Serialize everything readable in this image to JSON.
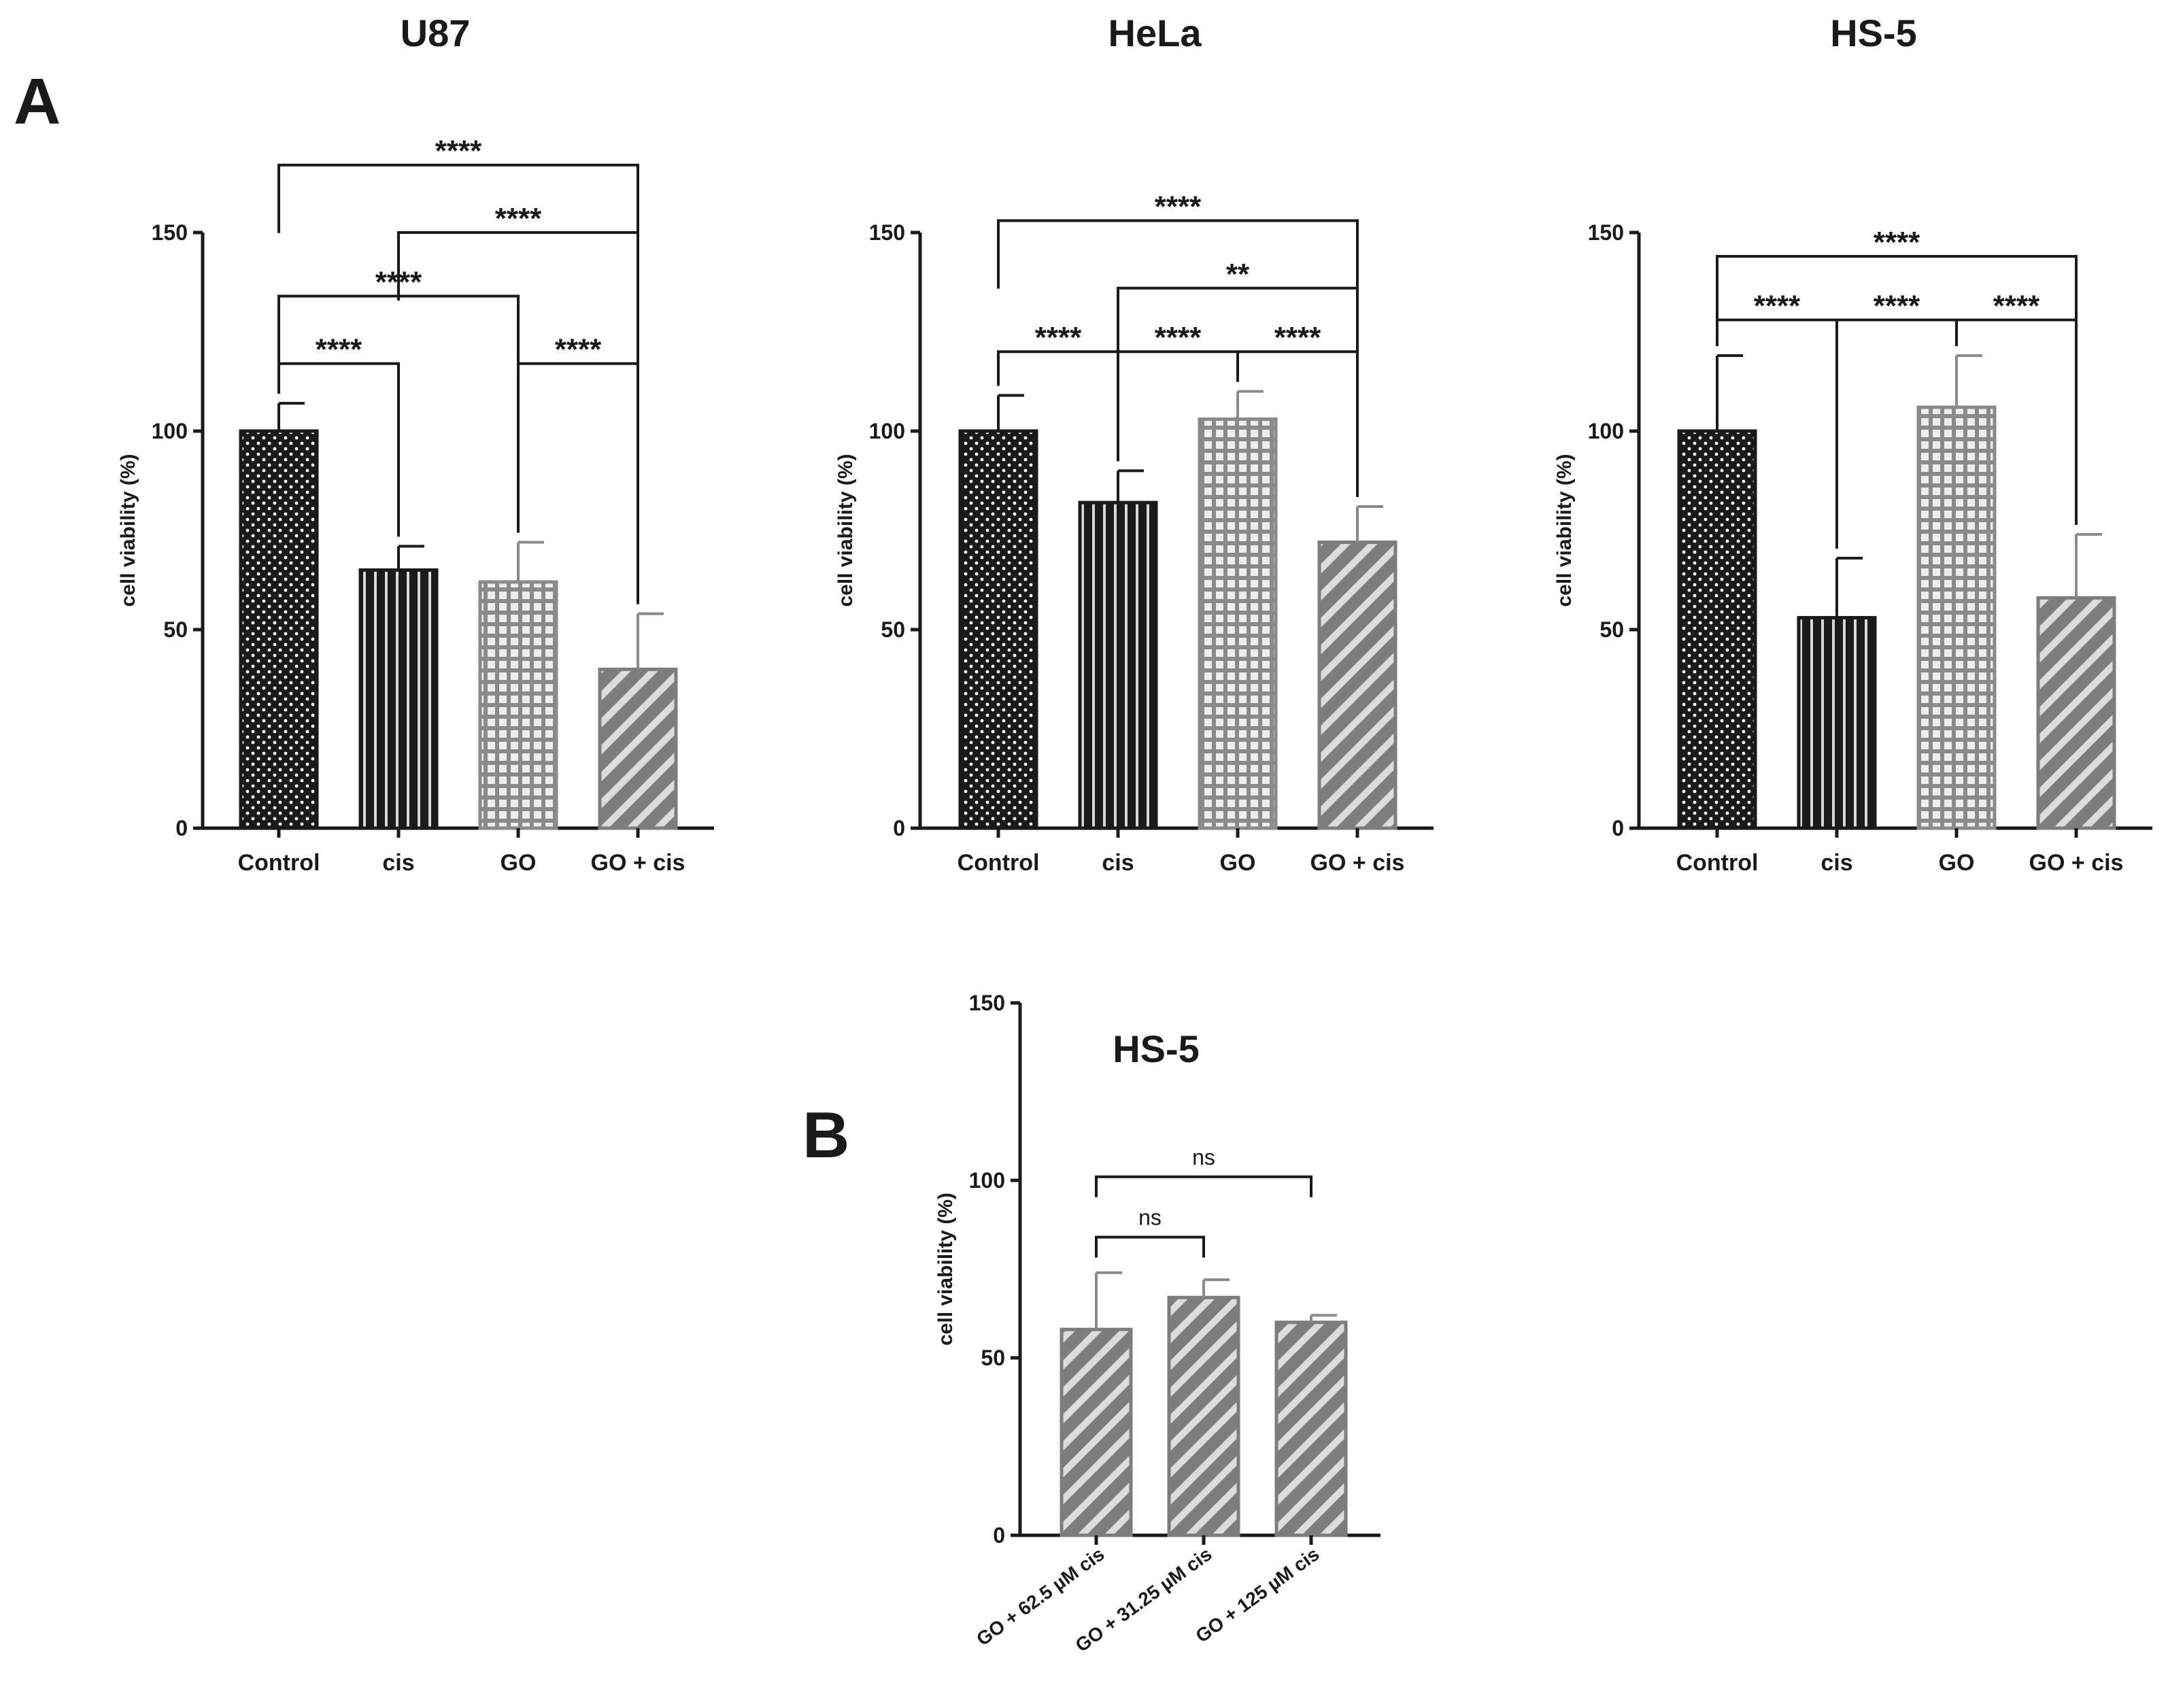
{
  "panel_labels": {
    "a": "A",
    "b": "B"
  },
  "colors": {
    "control_fill": "#1a1a1a",
    "control_dot": "#ffffff",
    "cis_fill": "#1a1a1a",
    "cis_line": "#d8d8d8",
    "go_fill": "#8a8a8a",
    "go_grid": "#ededed",
    "gocis_fill": "#7d7d7d",
    "gocis_stripe": "#dcdcdc",
    "axis": "#1a1a1a",
    "bracket": "#1a1a1a",
    "error_dark": "#1a1a1a",
    "error_grey": "#8a8a8a"
  },
  "chart_data": [
    {
      "id": "u87",
      "type": "bar",
      "title": "U87",
      "ylabel": "cell viability (%)",
      "ylim": [
        0,
        150
      ],
      "yticks": [
        0,
        50,
        100,
        150
      ],
      "categories": [
        "Control",
        "cis",
        "GO",
        "GO + cis"
      ],
      "patterns": [
        "dots",
        "vlines",
        "grid",
        "stripes"
      ],
      "values": [
        100,
        65,
        62,
        40
      ],
      "errors": [
        7,
        6,
        10,
        14
      ],
      "significance": [
        {
          "from": 0,
          "to": 1,
          "label": "****",
          "y": 117
        },
        {
          "from": 2,
          "to": 3,
          "label": "****",
          "y": 117
        },
        {
          "from": 0,
          "to": 2,
          "label": "****",
          "y": 134
        },
        {
          "from": 1,
          "to": 3,
          "label": "****",
          "y": 150
        },
        {
          "from": 0,
          "to": 3,
          "label": "****",
          "y": 167
        }
      ]
    },
    {
      "id": "hela",
      "type": "bar",
      "title": "HeLa",
      "ylabel": "cell viability (%)",
      "ylim": [
        0,
        150
      ],
      "yticks": [
        0,
        50,
        100,
        150
      ],
      "categories": [
        "Control",
        "cis",
        "GO",
        "GO + cis"
      ],
      "patterns": [
        "dots",
        "vlines",
        "grid",
        "stripes"
      ],
      "values": [
        100,
        82,
        103,
        72
      ],
      "errors": [
        9,
        8,
        7,
        9
      ],
      "significance": [
        {
          "from": 0,
          "to": 1,
          "label": "****",
          "y": 120
        },
        {
          "from": 1,
          "to": 2,
          "label": "****",
          "y": 120
        },
        {
          "from": 2,
          "to": 3,
          "label": "****",
          "y": 120
        },
        {
          "from": 1,
          "to": 3,
          "label": "**",
          "y": 136
        },
        {
          "from": 0,
          "to": 3,
          "label": "****",
          "y": 153
        }
      ]
    },
    {
      "id": "hs5",
      "type": "bar",
      "title": "HS-5",
      "ylabel": "cell viability (%)",
      "ylim": [
        0,
        150
      ],
      "yticks": [
        0,
        50,
        100,
        150
      ],
      "categories": [
        "Control",
        "cis",
        "GO",
        "GO + cis"
      ],
      "patterns": [
        "dots",
        "vlines",
        "grid",
        "stripes"
      ],
      "values": [
        100,
        53,
        106,
        58
      ],
      "errors": [
        19,
        15,
        13,
        16
      ],
      "significance": [
        {
          "from": 0,
          "to": 1,
          "label": "****",
          "y": 128
        },
        {
          "from": 1,
          "to": 2,
          "label": "****",
          "y": 128
        },
        {
          "from": 2,
          "to": 3,
          "label": "****",
          "y": 128
        },
        {
          "from": 0,
          "to": 3,
          "label": "****",
          "y": 144
        }
      ]
    },
    {
      "id": "hs5b",
      "type": "bar",
      "title": "HS-5",
      "ylabel": "cell viability (%)",
      "ylim": [
        0,
        150
      ],
      "yticks": [
        0,
        50,
        100,
        150
      ],
      "categories": [
        "GO + 62.5 µM cis",
        "GO + 31.25 µM cis",
        "GO + 125 µM cis"
      ],
      "patterns": [
        "stripes",
        "stripes",
        "stripes"
      ],
      "values": [
        58,
        67,
        60
      ],
      "errors": [
        16,
        5,
        2
      ],
      "significance": [
        {
          "from": 0,
          "to": 1,
          "label": "ns",
          "y": 84
        },
        {
          "from": 0,
          "to": 2,
          "label": "ns",
          "y": 101
        }
      ]
    }
  ]
}
